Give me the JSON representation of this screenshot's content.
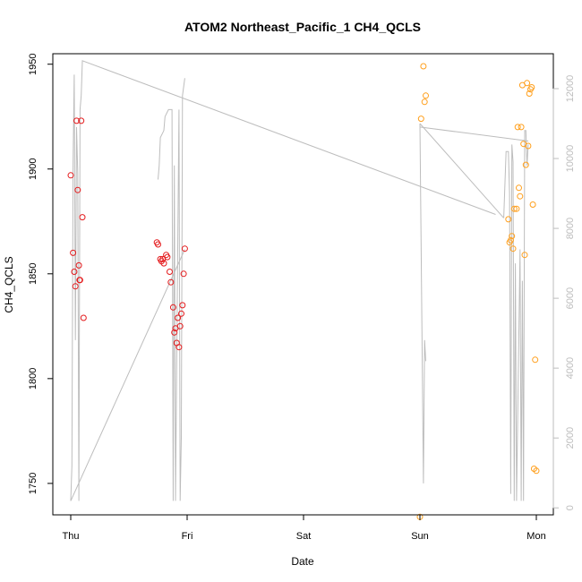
{
  "chart_data": {
    "type": "scatter",
    "title": "ATOM2 Northeast_Pacific_1 CH4_QCLS",
    "xlabel": "Date",
    "ylabel": "CH4_QCLS",
    "x_tick_labels": [
      "Thu",
      "Fri",
      "Sat",
      "Sun",
      "Mon"
    ],
    "x_ticks_days": [
      0,
      1,
      2,
      3,
      4
    ],
    "xlim_days": [
      -0.16,
      4.1
    ],
    "ylim": [
      1735,
      1955
    ],
    "y_ticks": [
      1750,
      1800,
      1850,
      1900,
      1950
    ],
    "y2_label": "",
    "y2lim": [
      -200,
      13000
    ],
    "y2_ticks": [
      0,
      2000,
      4000,
      6000,
      8000,
      10000,
      12000
    ],
    "colors": {
      "series_red": "#e41a1c",
      "series_orange": "#ff9f1c",
      "altitude_line": "#bdbdbd",
      "axis": "#000000",
      "right_axis": "#bdbdbd"
    },
    "series": [
      {
        "color": "#e41a1c",
        "points": [
          [
            0.0,
            1897
          ],
          [
            0.02,
            1860
          ],
          [
            0.03,
            1851
          ],
          [
            0.04,
            1844
          ],
          [
            0.05,
            1923
          ],
          [
            0.06,
            1890
          ],
          [
            0.07,
            1854
          ],
          [
            0.075,
            1847
          ],
          [
            0.08,
            1847
          ],
          [
            0.09,
            1923
          ],
          [
            0.1,
            1877
          ],
          [
            0.11,
            1829
          ],
          [
            0.74,
            1865
          ],
          [
            0.75,
            1864
          ],
          [
            0.77,
            1857
          ],
          [
            0.78,
            1856
          ],
          [
            0.79,
            1857
          ],
          [
            0.8,
            1855
          ],
          [
            0.82,
            1859
          ],
          [
            0.83,
            1858
          ],
          [
            0.85,
            1851
          ],
          [
            0.86,
            1846
          ],
          [
            0.88,
            1834
          ],
          [
            0.89,
            1822
          ],
          [
            0.9,
            1824
          ],
          [
            0.91,
            1817
          ],
          [
            0.92,
            1829
          ],
          [
            0.93,
            1815
          ],
          [
            0.94,
            1825
          ],
          [
            0.95,
            1831
          ],
          [
            0.96,
            1835
          ],
          [
            0.97,
            1850
          ],
          [
            0.98,
            1862
          ]
        ]
      },
      {
        "color": "#ff9f1c",
        "points": [
          [
            3.0,
            1734
          ],
          [
            3.01,
            1924
          ],
          [
            3.03,
            1949
          ],
          [
            3.04,
            1932
          ],
          [
            3.05,
            1935
          ],
          [
            3.76,
            1876
          ],
          [
            3.77,
            1865
          ],
          [
            3.78,
            1866
          ],
          [
            3.79,
            1868
          ],
          [
            3.8,
            1862
          ],
          [
            3.81,
            1881
          ],
          [
            3.83,
            1881
          ],
          [
            3.84,
            1920
          ],
          [
            3.85,
            1891
          ],
          [
            3.86,
            1887
          ],
          [
            3.87,
            1920
          ],
          [
            3.88,
            1940
          ],
          [
            3.89,
            1912
          ],
          [
            3.9,
            1859
          ],
          [
            3.91,
            1902
          ],
          [
            3.92,
            1941
          ],
          [
            3.93,
            1911
          ],
          [
            3.94,
            1936
          ],
          [
            3.95,
            1938
          ],
          [
            3.96,
            1939
          ],
          [
            3.97,
            1883
          ],
          [
            3.98,
            1757
          ],
          [
            3.99,
            1809
          ],
          [
            4.0,
            1756
          ]
        ]
      }
    ],
    "altitude_series": {
      "axis": "right",
      "points": [
        [
          0.0,
          200
        ],
        [
          0.02,
          9600
        ],
        [
          0.03,
          12400
        ],
        [
          0.04,
          6000
        ],
        [
          0.05,
          11200
        ],
        [
          0.06,
          10000
        ],
        [
          0.08,
          200
        ],
        [
          0.09,
          11400
        ],
        [
          0.1,
          1000
        ],
        [
          0.11,
          12800
        ],
        [
          3.7,
          8400
        ],
        [
          3.72,
          8600
        ],
        [
          3.73,
          8600
        ],
        [
          3.74,
          9000
        ],
        [
          3.76,
          10200
        ],
        [
          3.78,
          9800
        ],
        [
          3.8,
          9900
        ],
        [
          3.82,
          6200
        ],
        [
          3.84,
          8800
        ],
        [
          2.48,
          10300
        ],
        [
          2.5,
          10400
        ],
        [
          2.52,
          10400
        ],
        [
          3.0,
          10900
        ],
        [
          3.03,
          1800
        ],
        [
          3.04,
          4300
        ],
        [
          3.05,
          4900
        ]
      ],
      "segments": [
        [
          [
            0.0,
            200
          ],
          [
            0.01,
            1200
          ],
          [
            0.02,
            9800
          ],
          [
            0.03,
            12400
          ],
          [
            0.04,
            4800
          ],
          [
            0.05,
            10900
          ],
          [
            0.06,
            9600
          ],
          [
            0.07,
            200
          ],
          [
            0.08,
            11400
          ],
          [
            0.09,
            11800
          ],
          [
            0.1,
            12800
          ],
          [
            3.65,
            8400
          ]
        ],
        [
          [
            0.0,
            200
          ],
          [
            0.98,
            7400
          ]
        ],
        [
          [
            0.75,
            9400
          ],
          [
            0.76,
            9800
          ],
          [
            0.77,
            10600
          ],
          [
            0.8,
            10800
          ],
          [
            0.81,
            11200
          ],
          [
            0.84,
            11400
          ],
          [
            0.87,
            11400
          ],
          [
            0.88,
            200
          ],
          [
            0.89,
            9800
          ],
          [
            0.9,
            200
          ],
          [
            0.93,
            11400
          ],
          [
            0.94,
            200
          ],
          [
            0.95,
            2000
          ],
          [
            0.96,
            11800
          ],
          [
            0.98,
            12300
          ]
        ],
        [
          [
            3.0,
            11000
          ],
          [
            3.03,
            700
          ],
          [
            3.04,
            4800
          ],
          [
            3.05,
            4200
          ]
        ],
        [
          [
            3.0,
            11000
          ],
          [
            3.72,
            8300
          ]
        ],
        [
          [
            3.72,
            8300
          ],
          [
            3.74,
            10200
          ],
          [
            3.76,
            10200
          ],
          [
            3.77,
            9000
          ],
          [
            3.78,
            400
          ],
          [
            3.79,
            10400
          ],
          [
            3.8,
            9900
          ],
          [
            3.81,
            200
          ],
          [
            3.82,
            7000
          ],
          [
            3.83,
            200
          ],
          [
            3.86,
            7400
          ],
          [
            3.87,
            200
          ],
          [
            3.88,
            6500
          ],
          [
            3.89,
            200
          ],
          [
            3.9,
            10800
          ],
          [
            3.91,
            10800
          ],
          [
            3.92,
            9800
          ],
          [
            3.93,
            10400
          ]
        ],
        [
          [
            3.0,
            10900
          ],
          [
            3.93,
            10500
          ]
        ]
      ]
    }
  }
}
